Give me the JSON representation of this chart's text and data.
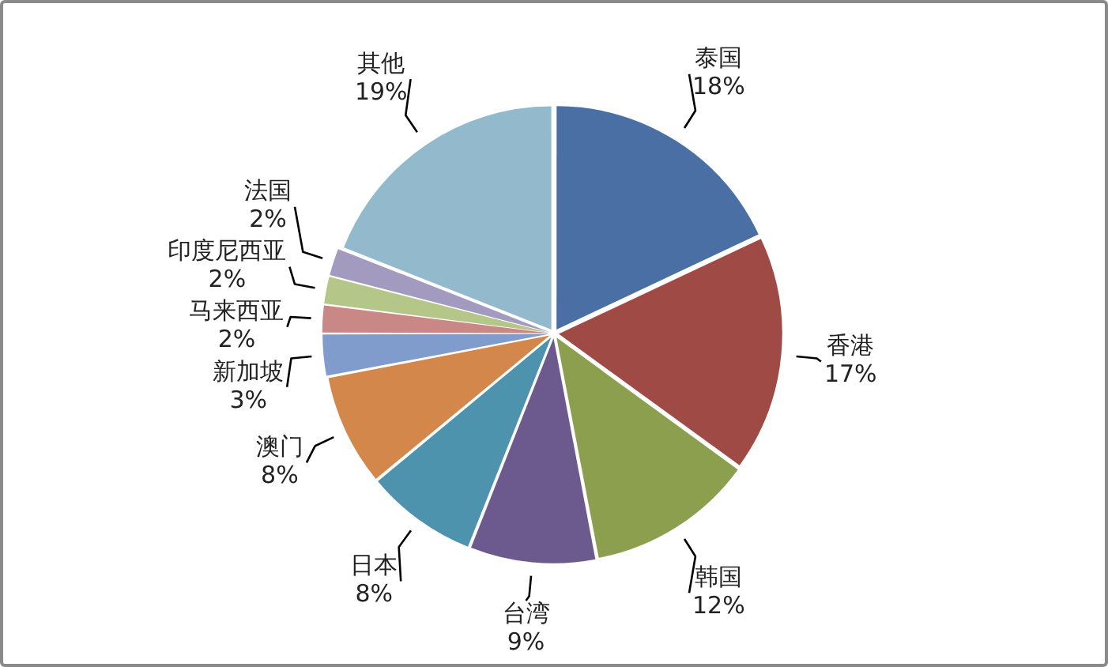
{
  "chart_data": {
    "type": "pie",
    "categories": [
      "泰国",
      "香港",
      "韩国",
      "台湾",
      "日本",
      "澳门",
      "新加坡",
      "马来西亚",
      "印度尼西亚",
      "法国",
      "其他"
    ],
    "values": [
      18,
      17,
      12,
      9,
      8,
      8,
      3,
      2,
      2,
      2,
      19
    ],
    "colors": [
      "#4a6fa5",
      "#a04a46",
      "#8c9f4e",
      "#6c5a8f",
      "#4d93ad",
      "#d4874a",
      "#7f9ccc",
      "#c98886",
      "#b5c689",
      "#a39abf",
      "#93b9cd"
    ],
    "value_labels": [
      "18%",
      "17%",
      "12%",
      "9%",
      "8%",
      "8%",
      "3%",
      "2%",
      "2%",
      "2%",
      "19%"
    ]
  }
}
